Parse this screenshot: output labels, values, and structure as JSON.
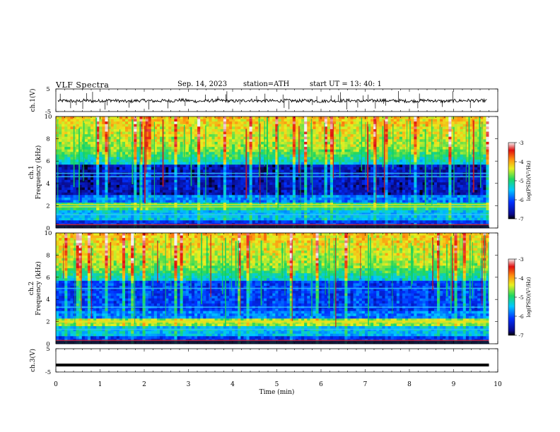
{
  "header": {
    "title": "VLF  Spectra",
    "date": "Sep. 14, 2023",
    "station": "station=ATH",
    "start": "start  UT  =   13: 40: 1"
  },
  "chart_data": [
    {
      "type": "line",
      "panel": "ch1",
      "ylabel": "ch.1(V)",
      "ylim": [
        -5,
        5
      ],
      "y_ticks": [
        "5",
        "-5"
      ],
      "x_range": [
        0,
        10
      ],
      "description_series": [
        {
          "values": [
            -0.3,
            -0.2,
            -0.5,
            -0.1,
            -0.4,
            -0.2,
            0.0,
            -0.3,
            -0.6,
            -0.2,
            -0.1,
            -0.4,
            -0.2,
            -0.3,
            0.1,
            -0.2,
            -0.5,
            -0.3,
            -0.1,
            -0.2,
            -0.4,
            -0.2,
            0.0,
            -0.3,
            -0.2,
            -0.4,
            -0.1,
            -0.3,
            -0.2,
            -0.1,
            -0.5,
            -0.2,
            -0.3,
            -0.1,
            -0.2,
            -0.4,
            -0.2,
            0.0,
            -0.3,
            -0.2,
            -0.4,
            -0.3,
            -0.1,
            -0.2,
            -0.5,
            -0.3,
            -0.2,
            -0.1,
            -0.3,
            -0.2
          ]
        }
      ]
    },
    {
      "type": "heatmap",
      "panel": "ch1-spectrogram",
      "ylabel": "ch.1\nFrequency  (kHz)",
      "ylabel_lines": [
        "ch.1",
        "Frequency  (kHz)"
      ],
      "ylim": [
        0,
        10
      ],
      "y_ticks": [
        "0",
        "2",
        "4",
        "6",
        "8",
        "10"
      ],
      "x_range": [
        0,
        10
      ],
      "colorbar": {
        "label": "log(PSD)(V²/Hz)",
        "ticks": [
          "-3",
          "-4",
          "-5",
          "-6",
          "-7"
        ],
        "range": [
          -7,
          -3
        ]
      }
    },
    {
      "type": "heatmap",
      "panel": "ch2-spectrogram",
      "ylabel": "ch.2\nFrequency  (kHz)",
      "ylabel_lines": [
        "ch.2",
        "Frequency  (kHz)"
      ],
      "ylim": [
        0,
        10
      ],
      "y_ticks": [
        "0",
        "2",
        "4",
        "6",
        "8",
        "10"
      ],
      "x_range": [
        0,
        10
      ],
      "colorbar": {
        "label": "log(PSD)(V²/Hz)",
        "ticks": [
          "-3",
          "-4",
          "-5",
          "-6",
          "-7"
        ],
        "range": [
          -7,
          -3
        ]
      }
    },
    {
      "type": "line",
      "panel": "ch3",
      "ylabel": "ch.3(V)",
      "ylim": [
        -5,
        5
      ],
      "y_ticks": [
        "5",
        "-5"
      ],
      "x_range": [
        0,
        10
      ],
      "series": [
        {
          "x": [
            0,
            9.8
          ],
          "values": [
            -2,
            -2
          ]
        }
      ]
    }
  ],
  "xaxis": {
    "label": "Time  (min)",
    "ticks": [
      "0",
      "1",
      "2",
      "3",
      "4",
      "5",
      "6",
      "7",
      "8",
      "9",
      "10"
    ],
    "range": [
      0,
      10
    ],
    "data_end": 9.8
  }
}
